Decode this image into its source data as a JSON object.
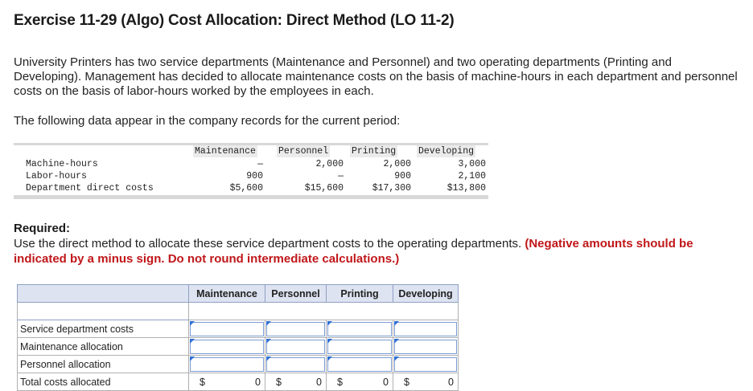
{
  "title": "Exercise 11-29 (Algo) Cost Allocation: Direct Method (LO 11-2)",
  "intro": "University Printers has two service departments (Maintenance and Personnel) and two operating departments (Printing and Developing). Management has decided to allocate maintenance costs on the basis of machine-hours in each department and personnel costs on the basis of labor-hours worked by the employees in each.",
  "lead": "The following data appear in the company records for the current period:",
  "data_table": {
    "headers": [
      "Maintenance",
      "Personnel",
      "Printing",
      "Developing"
    ],
    "rows": [
      {
        "label": "Machine-hours",
        "values": [
          "—",
          "2,000",
          "2,000",
          "3,000"
        ]
      },
      {
        "label": "Labor-hours",
        "values": [
          "900",
          "—",
          "900",
          "2,100"
        ]
      },
      {
        "label": "Department direct costs",
        "values": [
          "$5,600",
          "$15,600",
          "$17,300",
          "$13,800"
        ]
      }
    ]
  },
  "required": {
    "heading": "Required:",
    "text": "Use the direct method to allocate these service department costs to the operating departments.",
    "note": "(Negative amounts should be indicated by a minus sign. Do not round intermediate calculations.)"
  },
  "answer_table": {
    "headers": [
      "Maintenance",
      "Personnel",
      "Printing",
      "Developing"
    ],
    "rows": [
      {
        "label": "Service department costs",
        "values": [
          "",
          "",
          "",
          ""
        ]
      },
      {
        "label": "Maintenance allocation",
        "values": [
          "",
          "",
          "",
          ""
        ]
      },
      {
        "label": "Personnel allocation",
        "values": [
          "",
          "",
          "",
          ""
        ]
      }
    ],
    "total": {
      "label": "Total costs allocated",
      "currency": "$",
      "values": [
        "0",
        "0",
        "0",
        "0"
      ]
    }
  },
  "colors": {
    "accent_red": "#c0171a",
    "header_bg": "#dde3f0",
    "input_flag": "#2f6fd6"
  }
}
